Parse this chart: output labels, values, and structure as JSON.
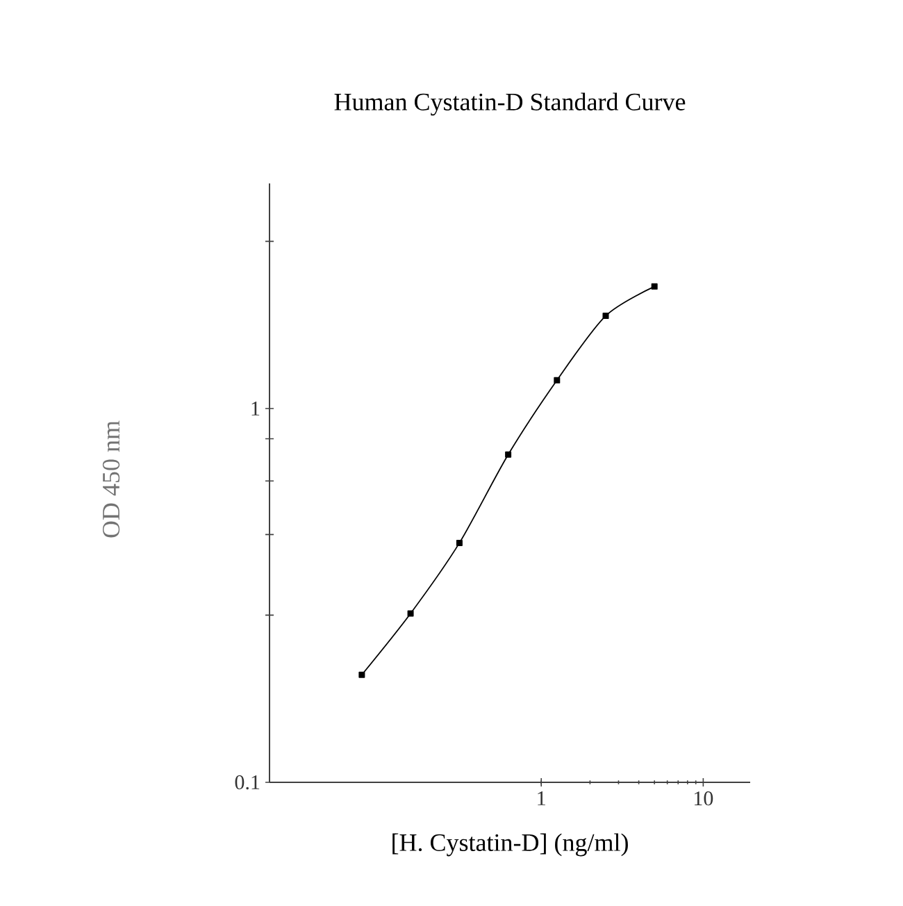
{
  "chart_data": {
    "type": "line",
    "title": "Human Cystatin-D Standard Curve",
    "xlabel": "[H. Cystatin-D] (ng/ml)",
    "ylabel": "OD 450 nm",
    "log": "xy",
    "marker": "square",
    "line_style": "solid",
    "grid": false,
    "legend": false,
    "xlim": [
      0.021,
      19.5
    ],
    "ylim": [
      0.1,
      4
    ],
    "xticks": [
      1,
      10
    ],
    "yticks": [
      0.1,
      {
        "value": 0.28,
        "label": null
      },
      {
        "value": 0.46,
        "label": null
      },
      {
        "value": 0.64,
        "label": null
      },
      {
        "value": 0.83,
        "label": null
      },
      1,
      {
        "value": 2.8,
        "label": null
      }
    ],
    "x": [
      0.078,
      0.156,
      0.3125,
      0.625,
      1.25,
      2.5,
      5
    ],
    "series": [
      {
        "color": "#000000",
        "values": [
          0.194,
          0.283,
          0.437,
          0.753,
          1.19,
          1.77,
          2.12
        ]
      }
    ]
  }
}
